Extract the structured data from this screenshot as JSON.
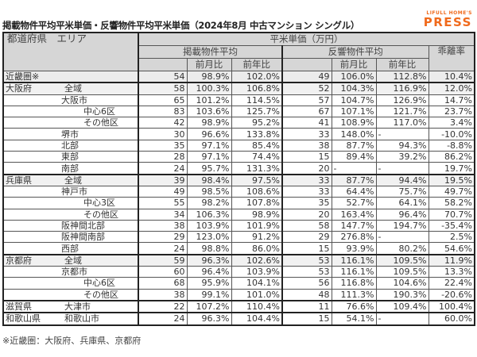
{
  "title": "掲載物件平均平米単価・反響物件平均平米単価（2024年8月 中古マンション シングル）",
  "logo": {
    "small": "LIFULL HOME'S",
    "big": "PRESS",
    "color": "#f06a1c"
  },
  "header": {
    "area_col": "都道府県　エリア",
    "unit": "平米単価（万円）",
    "listing_avg": "掲載物件平均",
    "response_avg": "反響物件平均",
    "divergence": "乖離率",
    "mom": "前月比",
    "yoy": "前年比"
  },
  "rows": [
    {
      "pref": "近畿圏※",
      "area": "",
      "indent": 0,
      "l_val": "54",
      "l_mom": "98.9%",
      "l_yoy": "102.0%",
      "r_val": "49",
      "r_mom": "106.0%",
      "r_yoy": "112.8%",
      "div": "10.4%"
    },
    {
      "pref": "大阪府",
      "area": "全域",
      "indent": 1,
      "l_val": "58",
      "l_mom": "100.3%",
      "l_yoy": "106.8%",
      "r_val": "52",
      "r_mom": "104.3%",
      "r_yoy": "116.9%",
      "div": "12.0%"
    },
    {
      "pref": "",
      "area": "大阪市",
      "indent": 2,
      "l_val": "65",
      "l_mom": "101.2%",
      "l_yoy": "114.5%",
      "r_val": "57",
      "r_mom": "104.7%",
      "r_yoy": "126.9%",
      "div": "14.7%"
    },
    {
      "pref": "",
      "area": "中心6区",
      "indent": 3,
      "l_val": "83",
      "l_mom": "103.6%",
      "l_yoy": "125.7%",
      "r_val": "67",
      "r_mom": "107.1%",
      "r_yoy": "121.7%",
      "div": "23.7%"
    },
    {
      "pref": "",
      "area": "その他区",
      "indent": 3,
      "l_val": "42",
      "l_mom": "98.9%",
      "l_yoy": "95.2%",
      "r_val": "41",
      "r_mom": "108.9%",
      "r_yoy": "117.0%",
      "div": "3.4%"
    },
    {
      "pref": "",
      "area": "堺市",
      "indent": 2,
      "l_val": "30",
      "l_mom": "96.6%",
      "l_yoy": "133.8%",
      "r_val": "33",
      "r_mom": "148.0%",
      "r_yoy": "-",
      "div": "-10.0%"
    },
    {
      "pref": "",
      "area": "北部",
      "indent": 2,
      "l_val": "35",
      "l_mom": "97.1%",
      "l_yoy": "85.4%",
      "r_val": "38",
      "r_mom": "87.7%",
      "r_yoy": "94.3%",
      "div": "-8.8%"
    },
    {
      "pref": "",
      "area": "東部",
      "indent": 2,
      "l_val": "28",
      "l_mom": "97.1%",
      "l_yoy": "74.4%",
      "r_val": "15",
      "r_mom": "89.4%",
      "r_yoy": "39.2%",
      "div": "86.2%"
    },
    {
      "pref": "",
      "area": "南部",
      "indent": 2,
      "l_val": "24",
      "l_mom": "95.7%",
      "l_yoy": "131.3%",
      "r_val": "20",
      "r_mom": "-",
      "r_yoy": "-",
      "div": "19.7%"
    },
    {
      "pref": "兵庫県",
      "area": "全域",
      "indent": 1,
      "l_val": "39",
      "l_mom": "98.4%",
      "l_yoy": "97.5%",
      "r_val": "33",
      "r_mom": "87.7%",
      "r_yoy": "94.4%",
      "div": "19.5%"
    },
    {
      "pref": "",
      "area": "神戸市",
      "indent": 2,
      "l_val": "49",
      "l_mom": "98.5%",
      "l_yoy": "108.6%",
      "r_val": "33",
      "r_mom": "64.4%",
      "r_yoy": "75.7%",
      "div": "49.7%"
    },
    {
      "pref": "",
      "area": "中心3区",
      "indent": 3,
      "l_val": "55",
      "l_mom": "98.2%",
      "l_yoy": "107.8%",
      "r_val": "35",
      "r_mom": "52.7%",
      "r_yoy": "64.1%",
      "div": "58.2%"
    },
    {
      "pref": "",
      "area": "その他区",
      "indent": 3,
      "l_val": "34",
      "l_mom": "106.3%",
      "l_yoy": "98.9%",
      "r_val": "20",
      "r_mom": "163.4%",
      "r_yoy": "96.4%",
      "div": "70.7%"
    },
    {
      "pref": "",
      "area": "阪神間北部",
      "indent": 2,
      "l_val": "38",
      "l_mom": "103.9%",
      "l_yoy": "101.9%",
      "r_val": "58",
      "r_mom": "147.7%",
      "r_yoy": "194.7%",
      "div": "-35.4%"
    },
    {
      "pref": "",
      "area": "阪神間南部",
      "indent": 2,
      "l_val": "29",
      "l_mom": "123.0%",
      "l_yoy": "91.2%",
      "r_val": "29",
      "r_mom": "276.8%",
      "r_yoy": "-",
      "div": "2.5%"
    },
    {
      "pref": "",
      "area": "西部",
      "indent": 2,
      "l_val": "24",
      "l_mom": "98.8%",
      "l_yoy": "86.0%",
      "r_val": "15",
      "r_mom": "93.9%",
      "r_yoy": "80.2%",
      "div": "54.6%"
    },
    {
      "pref": "京都府",
      "area": "全域",
      "indent": 1,
      "l_val": "59",
      "l_mom": "96.3%",
      "l_yoy": "102.6%",
      "r_val": "53",
      "r_mom": "116.1%",
      "r_yoy": "109.5%",
      "div": "11.9%"
    },
    {
      "pref": "",
      "area": "京都市",
      "indent": 2,
      "l_val": "60",
      "l_mom": "96.4%",
      "l_yoy": "103.9%",
      "r_val": "53",
      "r_mom": "116.1%",
      "r_yoy": "109.5%",
      "div": "13.3%"
    },
    {
      "pref": "",
      "area": "中心6区",
      "indent": 3,
      "l_val": "68",
      "l_mom": "95.9%",
      "l_yoy": "104.1%",
      "r_val": "56",
      "r_mom": "116.8%",
      "r_yoy": "104.6%",
      "div": "22.4%"
    },
    {
      "pref": "",
      "area": "その他区",
      "indent": 3,
      "l_val": "38",
      "l_mom": "99.1%",
      "l_yoy": "101.0%",
      "r_val": "48",
      "r_mom": "111.3%",
      "r_yoy": "190.3%",
      "div": "-20.6%"
    },
    {
      "pref": "滋賀県",
      "area": "大津市",
      "indent": 2,
      "l_val": "22",
      "l_mom": "107.2%",
      "l_yoy": "110.4%",
      "r_val": "11",
      "r_mom": "76.6%",
      "r_yoy": "109.4%",
      "div": "100.4%"
    },
    {
      "pref": "和歌山県",
      "area": "和歌山市",
      "indent": 2,
      "l_val": "24",
      "l_mom": "96.3%",
      "l_yoy": "104.4%",
      "r_val": "15",
      "r_mom": "54.1%",
      "r_yoy": "-",
      "div": "60.0%"
    }
  ],
  "note": "※近畿圏：大阪府、兵庫県、京都府"
}
